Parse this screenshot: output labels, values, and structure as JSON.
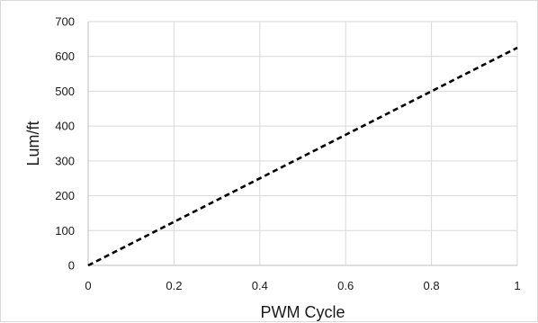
{
  "chart_data": {
    "type": "line",
    "title": "",
    "xlabel": "PWM Cycle",
    "ylabel": "Lum/ft",
    "xlim": [
      0,
      1
    ],
    "ylim": [
      0,
      700
    ],
    "x_ticks": [
      "0",
      "0.2",
      "0.4",
      "0.6",
      "0.8",
      "1"
    ],
    "y_ticks": [
      "0",
      "100",
      "200",
      "300",
      "400",
      "500",
      "600",
      "700"
    ],
    "grid": true,
    "legend": "none",
    "series": [
      {
        "line_style": "dashed",
        "color": "#000000",
        "x": [
          0,
          1
        ],
        "y": [
          0,
          625
        ]
      }
    ]
  }
}
